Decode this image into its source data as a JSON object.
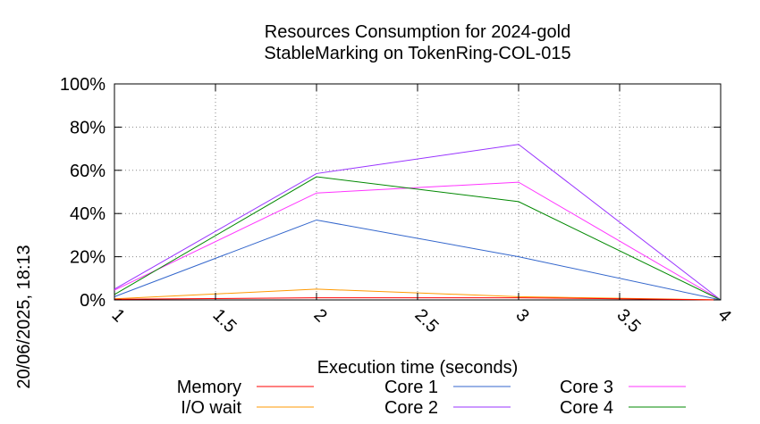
{
  "chart_data": {
    "type": "line",
    "title": "Resources Consumption for 2024-gold",
    "subtitle": "StableMarking on TokenRing-COL-015",
    "xlabel": "Execution time (seconds)",
    "ylabel": "",
    "side_label": "20/06/2025, 18:13",
    "xlim": [
      1,
      4
    ],
    "ylim": [
      0,
      100
    ],
    "x_ticks": [
      "1",
      "1.5",
      "2",
      "2.5",
      "3",
      "3.5",
      "4"
    ],
    "y_ticks": [
      "0%",
      "20%",
      "40%",
      "60%",
      "80%",
      "100%"
    ],
    "grid": true,
    "legend_position": "bottom",
    "x": [
      1,
      2,
      3,
      4
    ],
    "series": [
      {
        "name": "Memory",
        "color": "#ff0000",
        "values": [
          0.3,
          1.0,
          1.0,
          0
        ]
      },
      {
        "name": "I/O wait",
        "color": "#ff9900",
        "values": [
          0.5,
          5.0,
          1.5,
          0
        ]
      },
      {
        "name": "Core 1",
        "color": "#3366cc",
        "values": [
          1.5,
          37,
          20,
          0
        ]
      },
      {
        "name": "Core 2",
        "color": "#9933ff",
        "values": [
          5,
          58.5,
          72,
          0
        ]
      },
      {
        "name": "Core 3",
        "color": "#ff33ff",
        "values": [
          4.5,
          49.5,
          54.5,
          0
        ]
      },
      {
        "name": "Core 4",
        "color": "#008800",
        "values": [
          2.5,
          57,
          45.5,
          0
        ]
      }
    ]
  }
}
